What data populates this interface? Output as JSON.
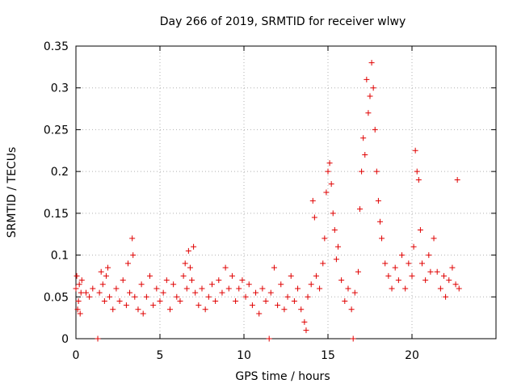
{
  "chart_data": {
    "type": "scatter",
    "title": "Day 266 of 2019, SRMTID for receiver wlwy",
    "xlabel": "GPS time / hours",
    "ylabel": "SRMTID / TECUs",
    "xlim": [
      0,
      25
    ],
    "ylim": [
      0,
      0.35
    ],
    "x_ticks": [
      0,
      5,
      10,
      15,
      20
    ],
    "x_tick_labels": [
      "0",
      "5",
      "10",
      "15",
      "20"
    ],
    "y_ticks": [
      0,
      0.05,
      0.1,
      0.15,
      0.2,
      0.25,
      0.3,
      0.35
    ],
    "y_tick_labels": [
      "0",
      "0.05",
      "0.1",
      "0.15",
      "0.2",
      "0.25",
      "0.3",
      "0.35"
    ],
    "grid": true,
    "marker": "+",
    "marker_color": "#e00000",
    "series": [
      {
        "name": "SRMTID",
        "points": [
          [
            0.0,
            0.06
          ],
          [
            0.05,
            0.075
          ],
          [
            0.1,
            0.035
          ],
          [
            0.15,
            0.045
          ],
          [
            0.2,
            0.065
          ],
          [
            0.25,
            0.03
          ],
          [
            0.3,
            0.055
          ],
          [
            0.35,
            0.07
          ],
          [
            0.6,
            0.055
          ],
          [
            0.8,
            0.05
          ],
          [
            1.0,
            0.06
          ],
          [
            1.3,
            0.0
          ],
          [
            1.4,
            0.055
          ],
          [
            1.5,
            0.08
          ],
          [
            1.6,
            0.065
          ],
          [
            1.7,
            0.045
          ],
          [
            1.8,
            0.075
          ],
          [
            1.9,
            0.085
          ],
          [
            2.0,
            0.05
          ],
          [
            2.2,
            0.035
          ],
          [
            2.4,
            0.06
          ],
          [
            2.6,
            0.045
          ],
          [
            2.8,
            0.07
          ],
          [
            3.0,
            0.04
          ],
          [
            3.1,
            0.09
          ],
          [
            3.2,
            0.055
          ],
          [
            3.35,
            0.12
          ],
          [
            3.4,
            0.1
          ],
          [
            3.5,
            0.05
          ],
          [
            3.7,
            0.035
          ],
          [
            3.9,
            0.065
          ],
          [
            4.0,
            0.03
          ],
          [
            4.2,
            0.05
          ],
          [
            4.4,
            0.075
          ],
          [
            4.6,
            0.04
          ],
          [
            4.8,
            0.06
          ],
          [
            5.0,
            0.045
          ],
          [
            5.2,
            0.055
          ],
          [
            5.4,
            0.07
          ],
          [
            5.6,
            0.035
          ],
          [
            5.8,
            0.065
          ],
          [
            6.0,
            0.05
          ],
          [
            6.2,
            0.045
          ],
          [
            6.4,
            0.075
          ],
          [
            6.5,
            0.09
          ],
          [
            6.6,
            0.06
          ],
          [
            6.7,
            0.105
          ],
          [
            6.8,
            0.085
          ],
          [
            6.9,
            0.07
          ],
          [
            7.0,
            0.11
          ],
          [
            7.1,
            0.055
          ],
          [
            7.3,
            0.04
          ],
          [
            7.5,
            0.06
          ],
          [
            7.7,
            0.035
          ],
          [
            7.9,
            0.05
          ],
          [
            8.1,
            0.065
          ],
          [
            8.3,
            0.045
          ],
          [
            8.5,
            0.07
          ],
          [
            8.7,
            0.055
          ],
          [
            8.9,
            0.085
          ],
          [
            9.1,
            0.06
          ],
          [
            9.3,
            0.075
          ],
          [
            9.5,
            0.045
          ],
          [
            9.7,
            0.06
          ],
          [
            9.9,
            0.07
          ],
          [
            10.1,
            0.05
          ],
          [
            10.3,
            0.065
          ],
          [
            10.5,
            0.04
          ],
          [
            10.7,
            0.055
          ],
          [
            10.9,
            0.03
          ],
          [
            11.1,
            0.06
          ],
          [
            11.3,
            0.045
          ],
          [
            11.5,
            0.0
          ],
          [
            11.6,
            0.055
          ],
          [
            11.8,
            0.085
          ],
          [
            12.0,
            0.04
          ],
          [
            12.2,
            0.065
          ],
          [
            12.4,
            0.035
          ],
          [
            12.6,
            0.05
          ],
          [
            12.8,
            0.075
          ],
          [
            13.0,
            0.045
          ],
          [
            13.2,
            0.06
          ],
          [
            13.4,
            0.035
          ],
          [
            13.6,
            0.02
          ],
          [
            13.7,
            0.01
          ],
          [
            13.8,
            0.05
          ],
          [
            14.0,
            0.065
          ],
          [
            14.1,
            0.165
          ],
          [
            14.2,
            0.145
          ],
          [
            14.3,
            0.075
          ],
          [
            14.5,
            0.06
          ],
          [
            14.7,
            0.09
          ],
          [
            14.8,
            0.12
          ],
          [
            14.9,
            0.175
          ],
          [
            15.0,
            0.2
          ],
          [
            15.1,
            0.21
          ],
          [
            15.2,
            0.185
          ],
          [
            15.3,
            0.15
          ],
          [
            15.4,
            0.13
          ],
          [
            15.5,
            0.095
          ],
          [
            15.6,
            0.11
          ],
          [
            15.8,
            0.07
          ],
          [
            16.0,
            0.045
          ],
          [
            16.2,
            0.06
          ],
          [
            16.4,
            0.035
          ],
          [
            16.5,
            0.0
          ],
          [
            16.6,
            0.055
          ],
          [
            16.8,
            0.08
          ],
          [
            16.9,
            0.155
          ],
          [
            17.0,
            0.2
          ],
          [
            17.1,
            0.24
          ],
          [
            17.2,
            0.22
          ],
          [
            17.3,
            0.31
          ],
          [
            17.4,
            0.27
          ],
          [
            17.5,
            0.29
          ],
          [
            17.6,
            0.33
          ],
          [
            17.7,
            0.3
          ],
          [
            17.8,
            0.25
          ],
          [
            17.9,
            0.2
          ],
          [
            18.0,
            0.165
          ],
          [
            18.1,
            0.14
          ],
          [
            18.2,
            0.12
          ],
          [
            18.4,
            0.09
          ],
          [
            18.6,
            0.075
          ],
          [
            18.8,
            0.06
          ],
          [
            19.0,
            0.085
          ],
          [
            19.2,
            0.07
          ],
          [
            19.4,
            0.1
          ],
          [
            19.6,
            0.06
          ],
          [
            19.8,
            0.09
          ],
          [
            20.0,
            0.075
          ],
          [
            20.1,
            0.11
          ],
          [
            20.2,
            0.225
          ],
          [
            20.3,
            0.2
          ],
          [
            20.4,
            0.19
          ],
          [
            20.5,
            0.13
          ],
          [
            20.6,
            0.09
          ],
          [
            20.8,
            0.07
          ],
          [
            21.0,
            0.1
          ],
          [
            21.1,
            0.08
          ],
          [
            21.3,
            0.12
          ],
          [
            21.5,
            0.08
          ],
          [
            21.7,
            0.06
          ],
          [
            21.9,
            0.075
          ],
          [
            22.0,
            0.05
          ],
          [
            22.2,
            0.07
          ],
          [
            22.4,
            0.085
          ],
          [
            22.6,
            0.065
          ],
          [
            22.7,
            0.19
          ],
          [
            22.8,
            0.06
          ]
        ]
      }
    ]
  }
}
